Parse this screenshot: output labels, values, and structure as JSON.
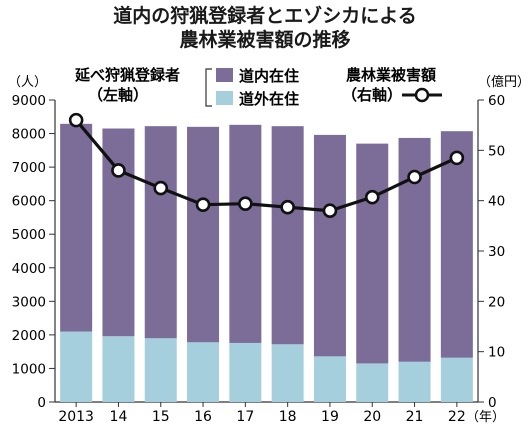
{
  "title": {
    "line1": "道内の狩猟登録者とエゾシカによる",
    "line2": "農林業被害額の推移"
  },
  "legend": {
    "left_group_label": "延べ狩猟登録者",
    "left_group_axis": "（左軸）",
    "hokkaido_label": "道内在住",
    "outside_label": "道外在住",
    "right_group_label": "農林業被害額",
    "right_group_axis": "（右軸）"
  },
  "axis_units": {
    "left": "（人）",
    "right": "（億円）",
    "x": "（年）"
  },
  "colors": {
    "hokkaido": "#7b6c98",
    "outside": "#a6cfdd",
    "line": "#111111",
    "marker_fill": "#ffffff"
  },
  "chart_data": {
    "type": "bar",
    "stacked": true,
    "categories": [
      "2013",
      "14",
      "15",
      "16",
      "17",
      "18",
      "19",
      "20",
      "21",
      "22"
    ],
    "series": [
      {
        "name": "道外在住",
        "axis": "left",
        "values": [
          2100,
          1960,
          1900,
          1780,
          1760,
          1720,
          1360,
          1150,
          1200,
          1320
        ]
      },
      {
        "name": "道内在住",
        "axis": "left",
        "values": [
          6190,
          6190,
          6320,
          6420,
          6500,
          6500,
          6600,
          6550,
          6670,
          6750
        ]
      },
      {
        "name": "農林業被害額",
        "axis": "right",
        "type": "line",
        "values": [
          56,
          46,
          42.5,
          39.2,
          39.4,
          38.7,
          38,
          40.7,
          44.7,
          48.5
        ]
      }
    ],
    "left_axis": {
      "ylim": [
        0,
        9000
      ],
      "ticks": [
        0,
        1000,
        2000,
        3000,
        4000,
        5000,
        6000,
        7000,
        8000,
        9000
      ]
    },
    "right_axis": {
      "ylim": [
        0,
        60
      ],
      "ticks": [
        0,
        10,
        20,
        30,
        40,
        50,
        60
      ]
    },
    "grid": false
  }
}
